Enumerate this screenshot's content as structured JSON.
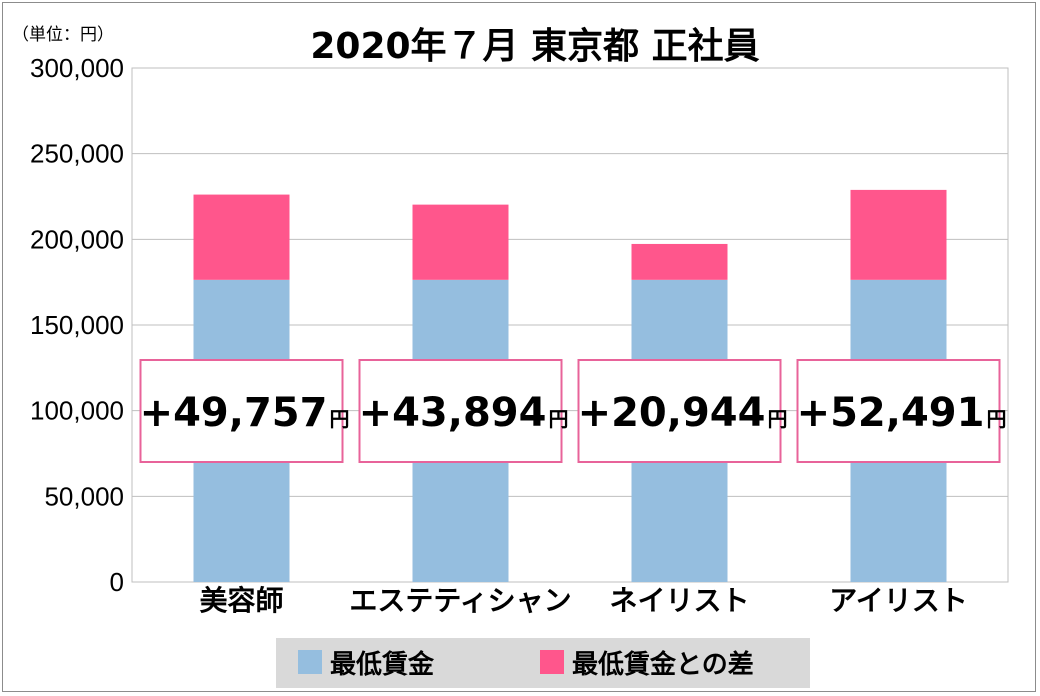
{
  "chart_data": {
    "type": "bar",
    "stacked": true,
    "title": "2020年７月 東京都 正社員",
    "unit_label": "（単位：円）",
    "categories": [
      "美容師",
      "エステティシャン",
      "ネイリスト",
      "アイリスト"
    ],
    "series": [
      {
        "name": "最低賃金",
        "color": "#95bedf",
        "values": [
          176364,
          176364,
          176364,
          176364
        ]
      },
      {
        "name": "最低賃金との差",
        "color": "#ff568c",
        "values": [
          49757,
          43894,
          20944,
          52491
        ]
      }
    ],
    "annotations": [
      {
        "value": "+49,757",
        "unit": "円"
      },
      {
        "value": "+43,894",
        "unit": "円"
      },
      {
        "value": "+20,944",
        "unit": "円"
      },
      {
        "value": "+52,491",
        "unit": "円"
      }
    ],
    "ylim": [
      0,
      300000
    ],
    "yticks": [
      0,
      50000,
      100000,
      150000,
      200000,
      250000,
      300000
    ],
    "ytick_labels": [
      "0",
      "50,000",
      "100,000",
      "150,000",
      "200,000",
      "250,000",
      "300,000"
    ],
    "grid": true,
    "legend_position": "bottom",
    "annotation_border_color": "#e8639a"
  }
}
